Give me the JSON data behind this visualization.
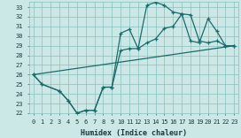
{
  "xlabel": "Humidex (Indice chaleur)",
  "bg_color": "#cce8e6",
  "grid_color": "#88bfbd",
  "line_color": "#1a6b6b",
  "xlim_min": -0.5,
  "xlim_max": 23.5,
  "ylim_min": 22,
  "ylim_max": 33.6,
  "xticks": [
    0,
    1,
    2,
    3,
    4,
    5,
    6,
    7,
    8,
    9,
    10,
    11,
    12,
    13,
    14,
    15,
    16,
    17,
    18,
    19,
    20,
    21,
    22,
    23
  ],
  "yticks": [
    22,
    23,
    24,
    25,
    26,
    27,
    28,
    29,
    30,
    31,
    32,
    33
  ],
  "curve1_x": [
    0,
    1,
    3,
    4,
    5,
    6,
    7,
    8,
    9,
    10,
    11,
    12,
    13,
    14,
    15,
    16,
    17,
    18,
    19,
    20,
    21,
    22,
    23
  ],
  "curve1_y": [
    26.0,
    25.0,
    24.3,
    23.3,
    22.0,
    22.3,
    22.3,
    24.7,
    24.7,
    30.3,
    30.7,
    28.7,
    33.2,
    33.5,
    33.2,
    32.5,
    32.3,
    32.2,
    29.5,
    29.3,
    29.5,
    29.0,
    29.0
  ],
  "curve2_x": [
    0,
    1,
    3,
    4,
    5,
    6,
    7,
    8,
    9,
    10,
    11,
    12,
    13,
    14,
    15,
    16,
    17,
    18,
    19,
    20,
    21,
    22,
    23
  ],
  "curve2_y": [
    26.0,
    25.0,
    24.3,
    23.3,
    22.0,
    22.3,
    22.3,
    24.7,
    24.7,
    28.5,
    28.7,
    28.7,
    29.3,
    29.7,
    30.8,
    31.0,
    32.3,
    29.5,
    29.3,
    31.8,
    30.5,
    29.0,
    29.0
  ],
  "line3_x": [
    0,
    23
  ],
  "line3_y": [
    26.0,
    29.0
  ],
  "linewidth": 0.9,
  "marker": "+",
  "markersize": 3.5
}
